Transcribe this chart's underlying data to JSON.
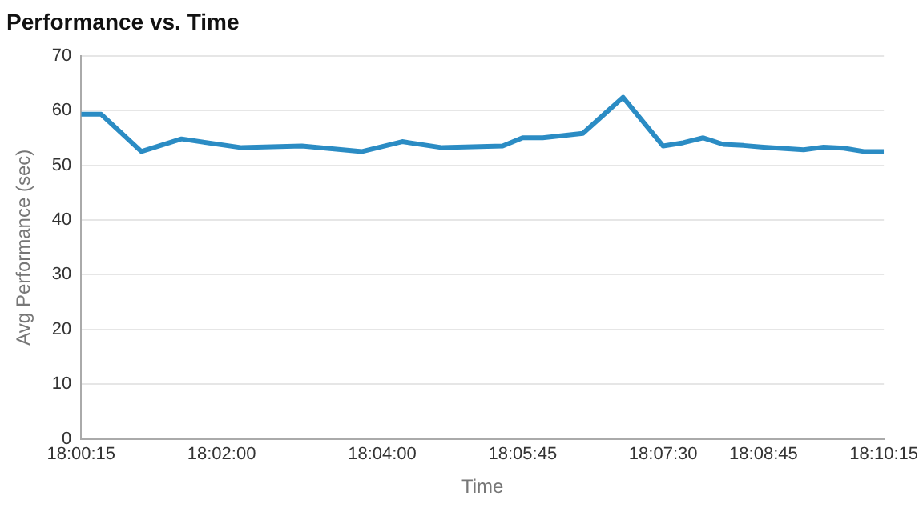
{
  "chart_data": {
    "type": "line",
    "title": "Performance vs. Time",
    "xlabel": "Time",
    "ylabel": "Avg Performance (sec)",
    "x": [
      18.00417,
      18.00833,
      18.01667,
      18.025,
      18.0375,
      18.05,
      18.0625,
      18.07083,
      18.07917,
      18.09167,
      18.09583,
      18.1,
      18.10833,
      18.11667,
      18.125,
      18.12917,
      18.13333,
      18.1375,
      18.14167,
      18.14583,
      18.15417,
      18.15833,
      18.1625,
      18.16667,
      18.17083
    ],
    "series": [
      {
        "color": "#2b8cc4",
        "values": [
          59.3,
          59.3,
          52.5,
          54.8,
          53.2,
          53.5,
          52.5,
          54.3,
          53.2,
          53.5,
          55.0,
          55.0,
          55.8,
          62.4,
          53.5,
          54.1,
          55.0,
          53.8,
          53.6,
          53.3,
          52.8,
          53.3,
          53.1,
          52.5,
          52.5
        ]
      }
    ],
    "xlim": [
      18.00417,
      18.17083
    ],
    "xticks": [
      {
        "value": 18.00417,
        "label": "18:00:15"
      },
      {
        "value": 18.03333,
        "label": "18:02:00"
      },
      {
        "value": 18.06667,
        "label": "18:04:00"
      },
      {
        "value": 18.09583,
        "label": "18:05:45"
      },
      {
        "value": 18.125,
        "label": "18:07:30"
      },
      {
        "value": 18.14583,
        "label": "18:08:45"
      },
      {
        "value": 18.17083,
        "label": "18:10:15"
      }
    ],
    "ylim": [
      0,
      70
    ],
    "yticks": [
      0,
      10,
      20,
      30,
      40,
      50,
      60,
      70
    ],
    "grid": "y",
    "legend": false,
    "marker": "none",
    "line_style": "solid"
  }
}
